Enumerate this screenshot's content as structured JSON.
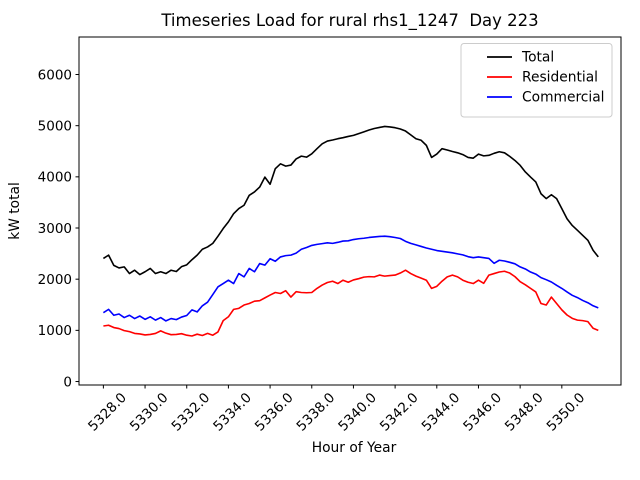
{
  "chart_data": {
    "type": "line",
    "title": "Timeseries Load for rural rhs1_1247  Day 223",
    "xlabel": "Hour of Year",
    "ylabel": "kW total",
    "grid": false,
    "legend_position": "upper right",
    "xlim": [
      5326.83,
      5352.84
    ],
    "ylim": [
      -68,
      6733
    ],
    "x_ticks": [
      5328,
      5330,
      5332,
      5334,
      5336,
      5338,
      5340,
      5342,
      5344,
      5346,
      5348,
      5350
    ],
    "x_tick_labels": [
      "5328.0",
      "5330.0",
      "5332.0",
      "5334.0",
      "5336.0",
      "5338.0",
      "5340.0",
      "5342.0",
      "5344.0",
      "5346.0",
      "5348.0",
      "5350.0"
    ],
    "y_ticks": [
      0,
      1000,
      2000,
      3000,
      4000,
      5000,
      6000
    ],
    "y_tick_labels": [
      "0",
      "1000",
      "2000",
      "3000",
      "4000",
      "5000",
      "6000"
    ],
    "hours": [
      5328.0,
      5328.25,
      5328.5,
      5328.75,
      5329.0,
      5329.25,
      5329.5,
      5329.75,
      5330.0,
      5330.25,
      5330.5,
      5330.75,
      5331.0,
      5331.25,
      5331.5,
      5331.75,
      5332.0,
      5332.25,
      5332.5,
      5332.75,
      5333.0,
      5333.25,
      5333.5,
      5333.75,
      5334.0,
      5334.25,
      5334.5,
      5334.75,
      5335.0,
      5335.25,
      5335.5,
      5335.75,
      5336.0,
      5336.25,
      5336.5,
      5336.75,
      5337.0,
      5337.25,
      5337.5,
      5337.75,
      5338.0,
      5338.25,
      5338.5,
      5338.75,
      5339.0,
      5339.25,
      5339.5,
      5339.75,
      5340.0,
      5340.25,
      5340.5,
      5340.75,
      5341.0,
      5341.25,
      5341.5,
      5341.75,
      5342.0,
      5342.25,
      5342.5,
      5342.75,
      5343.0,
      5343.25,
      5343.5,
      5343.75,
      5344.0,
      5344.25,
      5344.5,
      5344.75,
      5345.0,
      5345.25,
      5345.5,
      5345.75,
      5346.0,
      5346.25,
      5346.5,
      5346.75,
      5347.0,
      5347.25,
      5347.5,
      5347.75,
      5348.0,
      5348.25,
      5348.5,
      5348.75,
      5349.0,
      5349.25,
      5349.5,
      5349.75,
      5350.0,
      5350.25,
      5350.5,
      5350.75,
      5351.0,
      5351.25,
      5351.5,
      5351.75
    ],
    "series": [
      {
        "name": "Total",
        "color": "#000000",
        "values": [
          2405,
          2470,
          2270,
          2220,
          2240,
          2110,
          2175,
          2090,
          2145,
          2210,
          2110,
          2145,
          2110,
          2175,
          2150,
          2245,
          2280,
          2380,
          2470,
          2585,
          2630,
          2700,
          2840,
          2990,
          3120,
          3280,
          3380,
          3445,
          3640,
          3705,
          3800,
          3995,
          3855,
          4160,
          4255,
          4210,
          4230,
          4350,
          4405,
          4385,
          4450,
          4550,
          4645,
          4700,
          4720,
          4745,
          4765,
          4790,
          4810,
          4845,
          4880,
          4915,
          4945,
          4965,
          4985,
          4975,
          4960,
          4935,
          4895,
          4820,
          4745,
          4715,
          4615,
          4380,
          4445,
          4550,
          4525,
          4495,
          4470,
          4435,
          4380,
          4365,
          4445,
          4410,
          4420,
          4460,
          4490,
          4470,
          4400,
          4320,
          4225,
          4095,
          3995,
          3900,
          3670,
          3575,
          3650,
          3575,
          3380,
          3180,
          3050,
          2955,
          2858,
          2760,
          2565,
          2435
        ]
      },
      {
        "name": "Residential",
        "color": "#ff0000",
        "values": [
          1085,
          1100,
          1055,
          1035,
          995,
          975,
          940,
          930,
          910,
          920,
          940,
          990,
          945,
          915,
          920,
          935,
          905,
          890,
          925,
          900,
          940,
          905,
          970,
          1190,
          1265,
          1410,
          1430,
          1495,
          1525,
          1570,
          1580,
          1635,
          1690,
          1740,
          1720,
          1775,
          1650,
          1755,
          1740,
          1735,
          1740,
          1820,
          1885,
          1935,
          1960,
          1915,
          1980,
          1940,
          1985,
          2010,
          2040,
          2050,
          2045,
          2080,
          2060,
          2070,
          2080,
          2120,
          2175,
          2110,
          2060,
          2020,
          1980,
          1820,
          1860,
          1960,
          2045,
          2080,
          2045,
          1980,
          1940,
          1915,
          1980,
          1920,
          2080,
          2110,
          2140,
          2155,
          2120,
          2050,
          1950,
          1890,
          1820,
          1750,
          1525,
          1495,
          1650,
          1525,
          1400,
          1300,
          1235,
          1200,
          1190,
          1170,
          1040,
          1000
        ]
      },
      {
        "name": "Commercial",
        "color": "#0000ff",
        "values": [
          1345,
          1410,
          1295,
          1320,
          1250,
          1295,
          1230,
          1280,
          1215,
          1265,
          1200,
          1250,
          1185,
          1230,
          1210,
          1260,
          1290,
          1400,
          1360,
          1480,
          1550,
          1700,
          1850,
          1915,
          1980,
          1915,
          2110,
          2045,
          2210,
          2145,
          2305,
          2275,
          2400,
          2350,
          2435,
          2460,
          2470,
          2510,
          2585,
          2620,
          2660,
          2680,
          2695,
          2710,
          2700,
          2720,
          2745,
          2750,
          2775,
          2790,
          2800,
          2815,
          2825,
          2835,
          2840,
          2830,
          2815,
          2795,
          2740,
          2700,
          2670,
          2640,
          2610,
          2585,
          2560,
          2545,
          2530,
          2515,
          2495,
          2475,
          2440,
          2420,
          2435,
          2420,
          2405,
          2310,
          2370,
          2355,
          2330,
          2300,
          2240,
          2200,
          2140,
          2100,
          2030,
          1990,
          1945,
          1880,
          1820,
          1750,
          1685,
          1640,
          1585,
          1540,
          1480,
          1440
        ]
      }
    ]
  }
}
